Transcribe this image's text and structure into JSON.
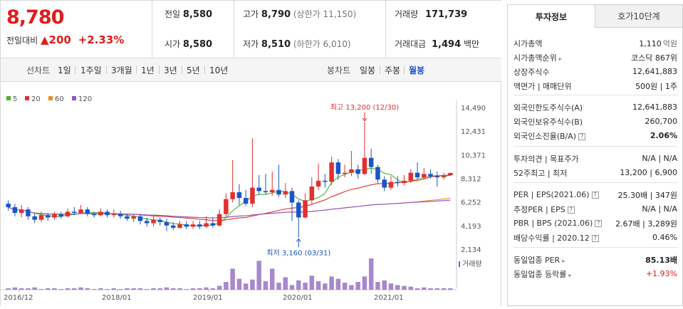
{
  "summary": {
    "price": "8,780",
    "change_label": "전일대비",
    "change_icon": "▲",
    "change_value": "200",
    "change_pct": "+2.33%",
    "prev_close": {
      "label": "전일",
      "value": "8,580"
    },
    "open": {
      "label": "시가",
      "value": "8,580"
    },
    "high": {
      "label": "고가",
      "value": "8,790",
      "limit_label": "(상한가",
      "limit_value": "11,150)"
    },
    "low": {
      "label": "저가",
      "value": "8,510",
      "limit_label": "(하한가",
      "limit_value": "6,010)"
    },
    "volume": {
      "label": "거래량",
      "value": "171,739"
    },
    "amount": {
      "label": "거래대금",
      "value": "1,494",
      "unit": "백만"
    }
  },
  "toolbar": {
    "line_chart": "선차트",
    "periods": [
      "1일",
      "1주일",
      "3개월",
      "1년",
      "3년",
      "5년",
      "10년"
    ],
    "candle_chart": "봉차트",
    "candle_periods": [
      "일봉",
      "주봉",
      "월봉"
    ],
    "active_candle": "월봉"
  },
  "legend": [
    {
      "name": "5",
      "color": "#4caf2c"
    },
    {
      "name": "20",
      "color": "#e0302f"
    },
    {
      "name": "60",
      "color": "#f08a1c"
    },
    {
      "name": "120",
      "color": "#8e56c8"
    }
  ],
  "chart_data": {
    "type": "candlestick",
    "y_ticks": [
      "14,490",
      "12,431",
      "10,371",
      "8,312",
      "6,252",
      "4,193",
      "2,134"
    ],
    "ylim": [
      2134,
      14490
    ],
    "x_ticks": [
      "2016/12",
      "2018/01",
      "2019/01",
      "2020/01",
      "2021/01"
    ],
    "high_annotation": "최고 13,200 (12/30)",
    "low_annotation": "최저 3,160 (03/31)",
    "volume_label": "거래량",
    "candles": [
      {
        "o": 6100,
        "c": 5800,
        "h": 6400,
        "l": 5500
      },
      {
        "o": 5800,
        "c": 5300,
        "h": 6100,
        "l": 5000
      },
      {
        "o": 5300,
        "c": 5600,
        "h": 6000,
        "l": 4900
      },
      {
        "o": 5600,
        "c": 5000,
        "h": 5800,
        "l": 4700
      },
      {
        "o": 5000,
        "c": 4700,
        "h": 5300,
        "l": 4400
      },
      {
        "o": 4700,
        "c": 5100,
        "h": 5400,
        "l": 4500
      },
      {
        "o": 5100,
        "c": 4900,
        "h": 5300,
        "l": 4600
      },
      {
        "o": 4900,
        "c": 5200,
        "h": 5400,
        "l": 4700
      },
      {
        "o": 5200,
        "c": 5000,
        "h": 5400,
        "l": 4800
      },
      {
        "o": 5000,
        "c": 5400,
        "h": 5700,
        "l": 4900
      },
      {
        "o": 5400,
        "c": 5300,
        "h": 5800,
        "l": 5100
      },
      {
        "o": 5300,
        "c": 5600,
        "h": 6000,
        "l": 5200
      },
      {
        "o": 5600,
        "c": 5200,
        "h": 5800,
        "l": 5000
      },
      {
        "o": 5200,
        "c": 5100,
        "h": 5400,
        "l": 4900
      },
      {
        "o": 5100,
        "c": 5400,
        "h": 5700,
        "l": 5000
      },
      {
        "o": 5400,
        "c": 5100,
        "h": 5600,
        "l": 4900
      },
      {
        "o": 5100,
        "c": 5200,
        "h": 5600,
        "l": 4900
      },
      {
        "o": 5200,
        "c": 5000,
        "h": 5500,
        "l": 4800
      },
      {
        "o": 5000,
        "c": 4800,
        "h": 5200,
        "l": 4600
      },
      {
        "o": 4800,
        "c": 5000,
        "h": 5200,
        "l": 4500
      },
      {
        "o": 5000,
        "c": 4600,
        "h": 5200,
        "l": 4300
      },
      {
        "o": 4600,
        "c": 4400,
        "h": 4900,
        "l": 4100
      },
      {
        "o": 4400,
        "c": 4700,
        "h": 5000,
        "l": 4100
      },
      {
        "o": 4700,
        "c": 4500,
        "h": 4900,
        "l": 4200
      },
      {
        "o": 4500,
        "c": 4200,
        "h": 4800,
        "l": 3700
      },
      {
        "o": 4200,
        "c": 4000,
        "h": 4500,
        "l": 3800
      },
      {
        "o": 4000,
        "c": 4300,
        "h": 4600,
        "l": 3900
      },
      {
        "o": 4300,
        "c": 4100,
        "h": 4600,
        "l": 3900
      },
      {
        "o": 4100,
        "c": 4300,
        "h": 4600,
        "l": 3900
      },
      {
        "o": 4300,
        "c": 4100,
        "h": 4600,
        "l": 3900
      },
      {
        "o": 4100,
        "c": 4400,
        "h": 5000,
        "l": 4000
      },
      {
        "o": 4400,
        "c": 4200,
        "h": 4900,
        "l": 4000
      },
      {
        "o": 4200,
        "c": 5200,
        "h": 5600,
        "l": 4100
      },
      {
        "o": 5200,
        "c": 6500,
        "h": 7000,
        "l": 5000
      },
      {
        "o": 6500,
        "c": 7100,
        "h": 9900,
        "l": 6200
      },
      {
        "o": 7100,
        "c": 6600,
        "h": 7800,
        "l": 6000
      },
      {
        "o": 6600,
        "c": 6100,
        "h": 7300,
        "l": 5900
      },
      {
        "o": 6100,
        "c": 7500,
        "h": 11800,
        "l": 5800
      },
      {
        "o": 7500,
        "c": 7200,
        "h": 8600,
        "l": 6900
      },
      {
        "o": 7200,
        "c": 7100,
        "h": 8700,
        "l": 6900
      },
      {
        "o": 7100,
        "c": 7300,
        "h": 8900,
        "l": 6800
      },
      {
        "o": 7300,
        "c": 6900,
        "h": 9500,
        "l": 6700
      },
      {
        "o": 6900,
        "c": 7200,
        "h": 7900,
        "l": 6600
      },
      {
        "o": 7200,
        "c": 6200,
        "h": 7500,
        "l": 4600
      },
      {
        "o": 6200,
        "c": 4900,
        "h": 6400,
        "l": 3160
      },
      {
        "o": 4900,
        "c": 6400,
        "h": 7000,
        "l": 4800
      },
      {
        "o": 6400,
        "c": 7600,
        "h": 8400,
        "l": 6100
      },
      {
        "o": 7600,
        "c": 8100,
        "h": 9600,
        "l": 7300
      },
      {
        "o": 8100,
        "c": 8000,
        "h": 8700,
        "l": 7500
      },
      {
        "o": 8000,
        "c": 9700,
        "h": 10200,
        "l": 7700
      },
      {
        "o": 9700,
        "c": 8700,
        "h": 10000,
        "l": 8200
      },
      {
        "o": 8700,
        "c": 8800,
        "h": 9500,
        "l": 8400
      },
      {
        "o": 8800,
        "c": 9100,
        "h": 10700,
        "l": 8500
      },
      {
        "o": 9100,
        "c": 8700,
        "h": 9500,
        "l": 8300
      },
      {
        "o": 8700,
        "c": 10100,
        "h": 13200,
        "l": 8600
      },
      {
        "o": 10100,
        "c": 9300,
        "h": 10900,
        "l": 8700
      },
      {
        "o": 9300,
        "c": 8200,
        "h": 9500,
        "l": 7900
      },
      {
        "o": 8200,
        "c": 7500,
        "h": 8500,
        "l": 7200
      },
      {
        "o": 7500,
        "c": 8000,
        "h": 8500,
        "l": 7300
      },
      {
        "o": 8000,
        "c": 7900,
        "h": 8500,
        "l": 7600
      },
      {
        "o": 7900,
        "c": 8100,
        "h": 8600,
        "l": 7700
      },
      {
        "o": 8100,
        "c": 8800,
        "h": 9100,
        "l": 7900
      },
      {
        "o": 8800,
        "c": 8400,
        "h": 9700,
        "l": 8200
      },
      {
        "o": 8400,
        "c": 8700,
        "h": 9200,
        "l": 8200
      },
      {
        "o": 8700,
        "c": 8500,
        "h": 9100,
        "l": 8300
      },
      {
        "o": 8500,
        "c": 8400,
        "h": 8900,
        "l": 7600
      },
      {
        "o": 8400,
        "c": 8500,
        "h": 8800,
        "l": 8200
      },
      {
        "o": 8580,
        "c": 8780,
        "h": 8790,
        "l": 8510
      }
    ],
    "volume": [
      2,
      3,
      2,
      2,
      3,
      1,
      2,
      2,
      1,
      2,
      2,
      3,
      2,
      1,
      2,
      1,
      2,
      1,
      2,
      2,
      2,
      1,
      2,
      2,
      3,
      2,
      2,
      1,
      2,
      2,
      3,
      2,
      5,
      10,
      27,
      14,
      8,
      13,
      37,
      11,
      27,
      9,
      16,
      6,
      12,
      9,
      18,
      11,
      8,
      17,
      14,
      9,
      6,
      10,
      17,
      40,
      10,
      12,
      8,
      6,
      5,
      4,
      2,
      3,
      2,
      2,
      2,
      2
    ]
  },
  "invest_panel": {
    "tabs": [
      "투자정보",
      "호가10단계"
    ],
    "rows_a": [
      {
        "label": "시가총액",
        "value": "1,110",
        "unit": "억원"
      },
      {
        "label": "시가총액순위",
        "value": "코스닥 867위",
        "has_arrow": true
      },
      {
        "label": "상장주식수",
        "value": "12,641,883"
      },
      {
        "label": "액면가 | 매매단위",
        "value": "500원 | 1주"
      }
    ],
    "rows_b": [
      {
        "label": "외국인한도주식수(A)",
        "value": "12,641,883"
      },
      {
        "label": "외국인보유주식수(B)",
        "value": "260,700"
      },
      {
        "label": "외국인소진율(B/A)",
        "value": "2.06%",
        "help": "?"
      }
    ],
    "rows_c": [
      {
        "label": "투자의견 | 목표주가",
        "value": "N/A | N/A"
      },
      {
        "label": "52주최고 | 최저",
        "value": "13,200 | 6,900"
      }
    ],
    "rows_d": [
      {
        "label": "PER | EPS(2021.06)",
        "value": "25.30배 | 347원",
        "help": "?"
      },
      {
        "label": "추정PER | EPS",
        "value": "N/A | N/A",
        "help": "?"
      },
      {
        "label": "PBR | BPS (2021.06)",
        "value": "2.67배 | 3,289원",
        "help": "?"
      },
      {
        "label": "배당수익률 | 2020.12",
        "value": "0.46%",
        "help": "?"
      }
    ],
    "rows_e": [
      {
        "label": "동일업종 PER",
        "value": "85.13배",
        "has_arrow": true
      },
      {
        "label": "동일업종 등락률",
        "value": "+1.93%",
        "has_arrow": true
      }
    ]
  }
}
